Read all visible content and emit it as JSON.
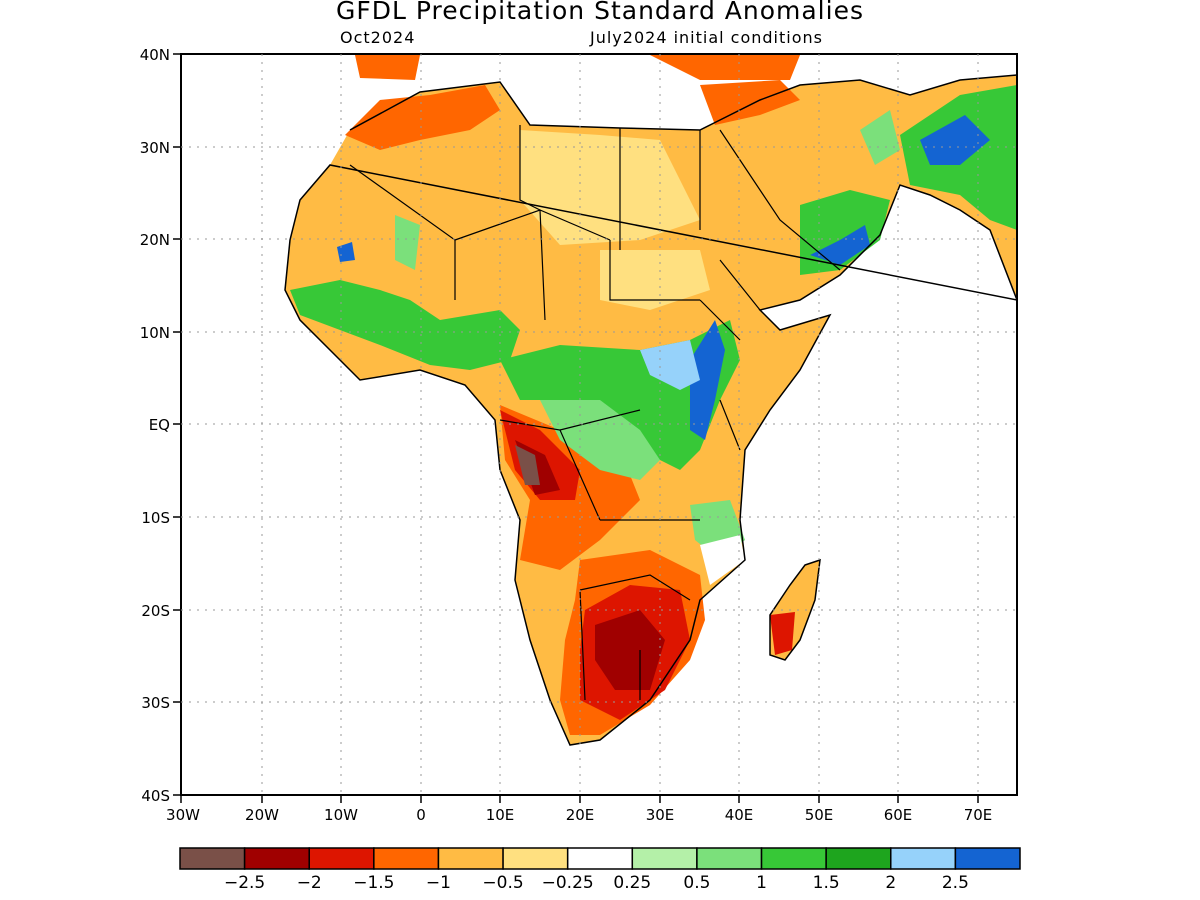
{
  "title": "GFDL Precipitation Standard Anomalies",
  "subtitle_left": "Oct2024",
  "subtitle_right": "July2024 initial conditions",
  "lat_labels": [
    "40N",
    "30N",
    "20N",
    "10N",
    "EQ",
    "10S",
    "20S",
    "30S",
    "40S"
  ],
  "lon_labels": [
    "30W",
    "20W",
    "10W",
    "0",
    "10E",
    "20E",
    "30E",
    "40E",
    "50E",
    "60E",
    "70E"
  ],
  "legend": {
    "colors": [
      "#7a5048",
      "#a00000",
      "#dd1500",
      "#ff6600",
      "#ffbb44",
      "#ffe080",
      "#ffffff",
      "#b4f0a8",
      "#7be07b",
      "#37c837",
      "#1ea51e",
      "#96d2fa",
      "#1464d2"
    ],
    "labels": [
      "−2.5",
      "−2",
      "−1.5",
      "−1",
      "−0.5",
      "−0.25",
      "0.25",
      "0.5",
      "1",
      "1.5",
      "2",
      "2.5"
    ]
  },
  "colors": {
    "ocean": "#ffffff",
    "dry_strong": "#dd1500",
    "dry_moderate": "#ffbb44",
    "wet": "#37c837",
    "very_wet": "#1464d2"
  }
}
